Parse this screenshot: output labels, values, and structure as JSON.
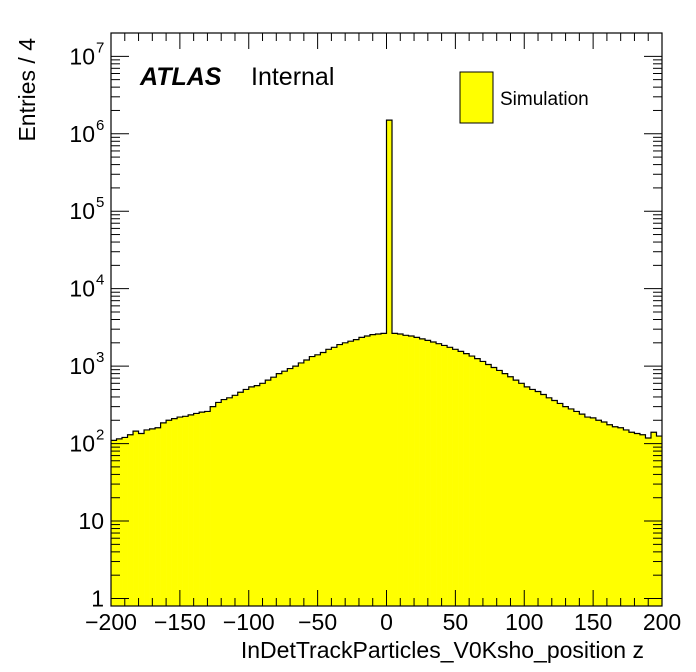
{
  "chart_data": {
    "type": "bar",
    "xlabel": "InDetTrackParticles_V0Ksho_position z",
    "ylabel": "Entries / 4",
    "xlim": [
      -200,
      200
    ],
    "ylim": [
      0.8,
      20000000
    ],
    "y_scale": "log",
    "bin_width": 4,
    "x_ticks": [
      -200,
      -150,
      -100,
      -50,
      0,
      50,
      100,
      150,
      200
    ],
    "x_tick_labels": [
      "−200",
      "−150",
      "−100",
      "−50",
      "0",
      "50",
      "100",
      "150",
      "200"
    ],
    "y_ticks": [
      {
        "value": 1,
        "base": "1",
        "exp": ""
      },
      {
        "value": 10,
        "base": "10",
        "exp": ""
      },
      {
        "value": 100,
        "base": "10",
        "exp": "2"
      },
      {
        "value": 1000,
        "base": "10",
        "exp": "3"
      },
      {
        "value": 10000,
        "base": "10",
        "exp": "4"
      },
      {
        "value": 100000,
        "base": "10",
        "exp": "5"
      },
      {
        "value": 1000000,
        "base": "10",
        "exp": "6"
      },
      {
        "value": 10000000,
        "base": "10",
        "exp": "7"
      }
    ],
    "series": [
      {
        "name": "Simulation",
        "color": "#ffff00",
        "x": [
          -198,
          -194,
          -190,
          -186,
          -182,
          -178,
          -174,
          -170,
          -166,
          -162,
          -158,
          -154,
          -150,
          -146,
          -142,
          -138,
          -134,
          -130,
          -126,
          -122,
          -118,
          -114,
          -110,
          -106,
          -102,
          -98,
          -94,
          -90,
          -86,
          -82,
          -78,
          -74,
          -70,
          -66,
          -62,
          -58,
          -54,
          -50,
          -46,
          -42,
          -38,
          -34,
          -30,
          -26,
          -22,
          -18,
          -14,
          -10,
          -6,
          -2,
          2,
          6,
          10,
          14,
          18,
          22,
          26,
          30,
          34,
          38,
          42,
          46,
          50,
          54,
          58,
          62,
          66,
          70,
          74,
          78,
          82,
          86,
          90,
          94,
          98,
          102,
          106,
          110,
          114,
          118,
          122,
          126,
          130,
          134,
          138,
          142,
          146,
          150,
          154,
          158,
          162,
          166,
          170,
          174,
          178,
          182,
          186,
          190,
          194,
          198
        ],
        "values": [
          110,
          115,
          120,
          130,
          145,
          135,
          150,
          155,
          160,
          185,
          200,
          210,
          220,
          225,
          235,
          245,
          255,
          260,
          300,
          340,
          370,
          390,
          420,
          460,
          500,
          540,
          560,
          600,
          660,
          720,
          800,
          860,
          930,
          1000,
          1100,
          1200,
          1330,
          1400,
          1500,
          1650,
          1750,
          1900,
          2000,
          2100,
          2200,
          2350,
          2450,
          2550,
          2600,
          2650,
          1500000,
          2650,
          2600,
          2500,
          2450,
          2350,
          2250,
          2150,
          2050,
          1950,
          1850,
          1750,
          1650,
          1550,
          1450,
          1350,
          1250,
          1150,
          1050,
          960,
          880,
          800,
          730,
          660,
          600,
          540,
          500,
          470,
          430,
          390,
          360,
          330,
          300,
          280,
          260,
          240,
          220,
          215,
          200,
          190,
          175,
          165,
          160,
          150,
          140,
          135,
          130,
          118,
          140,
          125
        ]
      }
    ]
  },
  "labels": {
    "atlas": "ATLAS",
    "internal": "Internal"
  },
  "legend": {
    "entry": "Simulation"
  }
}
